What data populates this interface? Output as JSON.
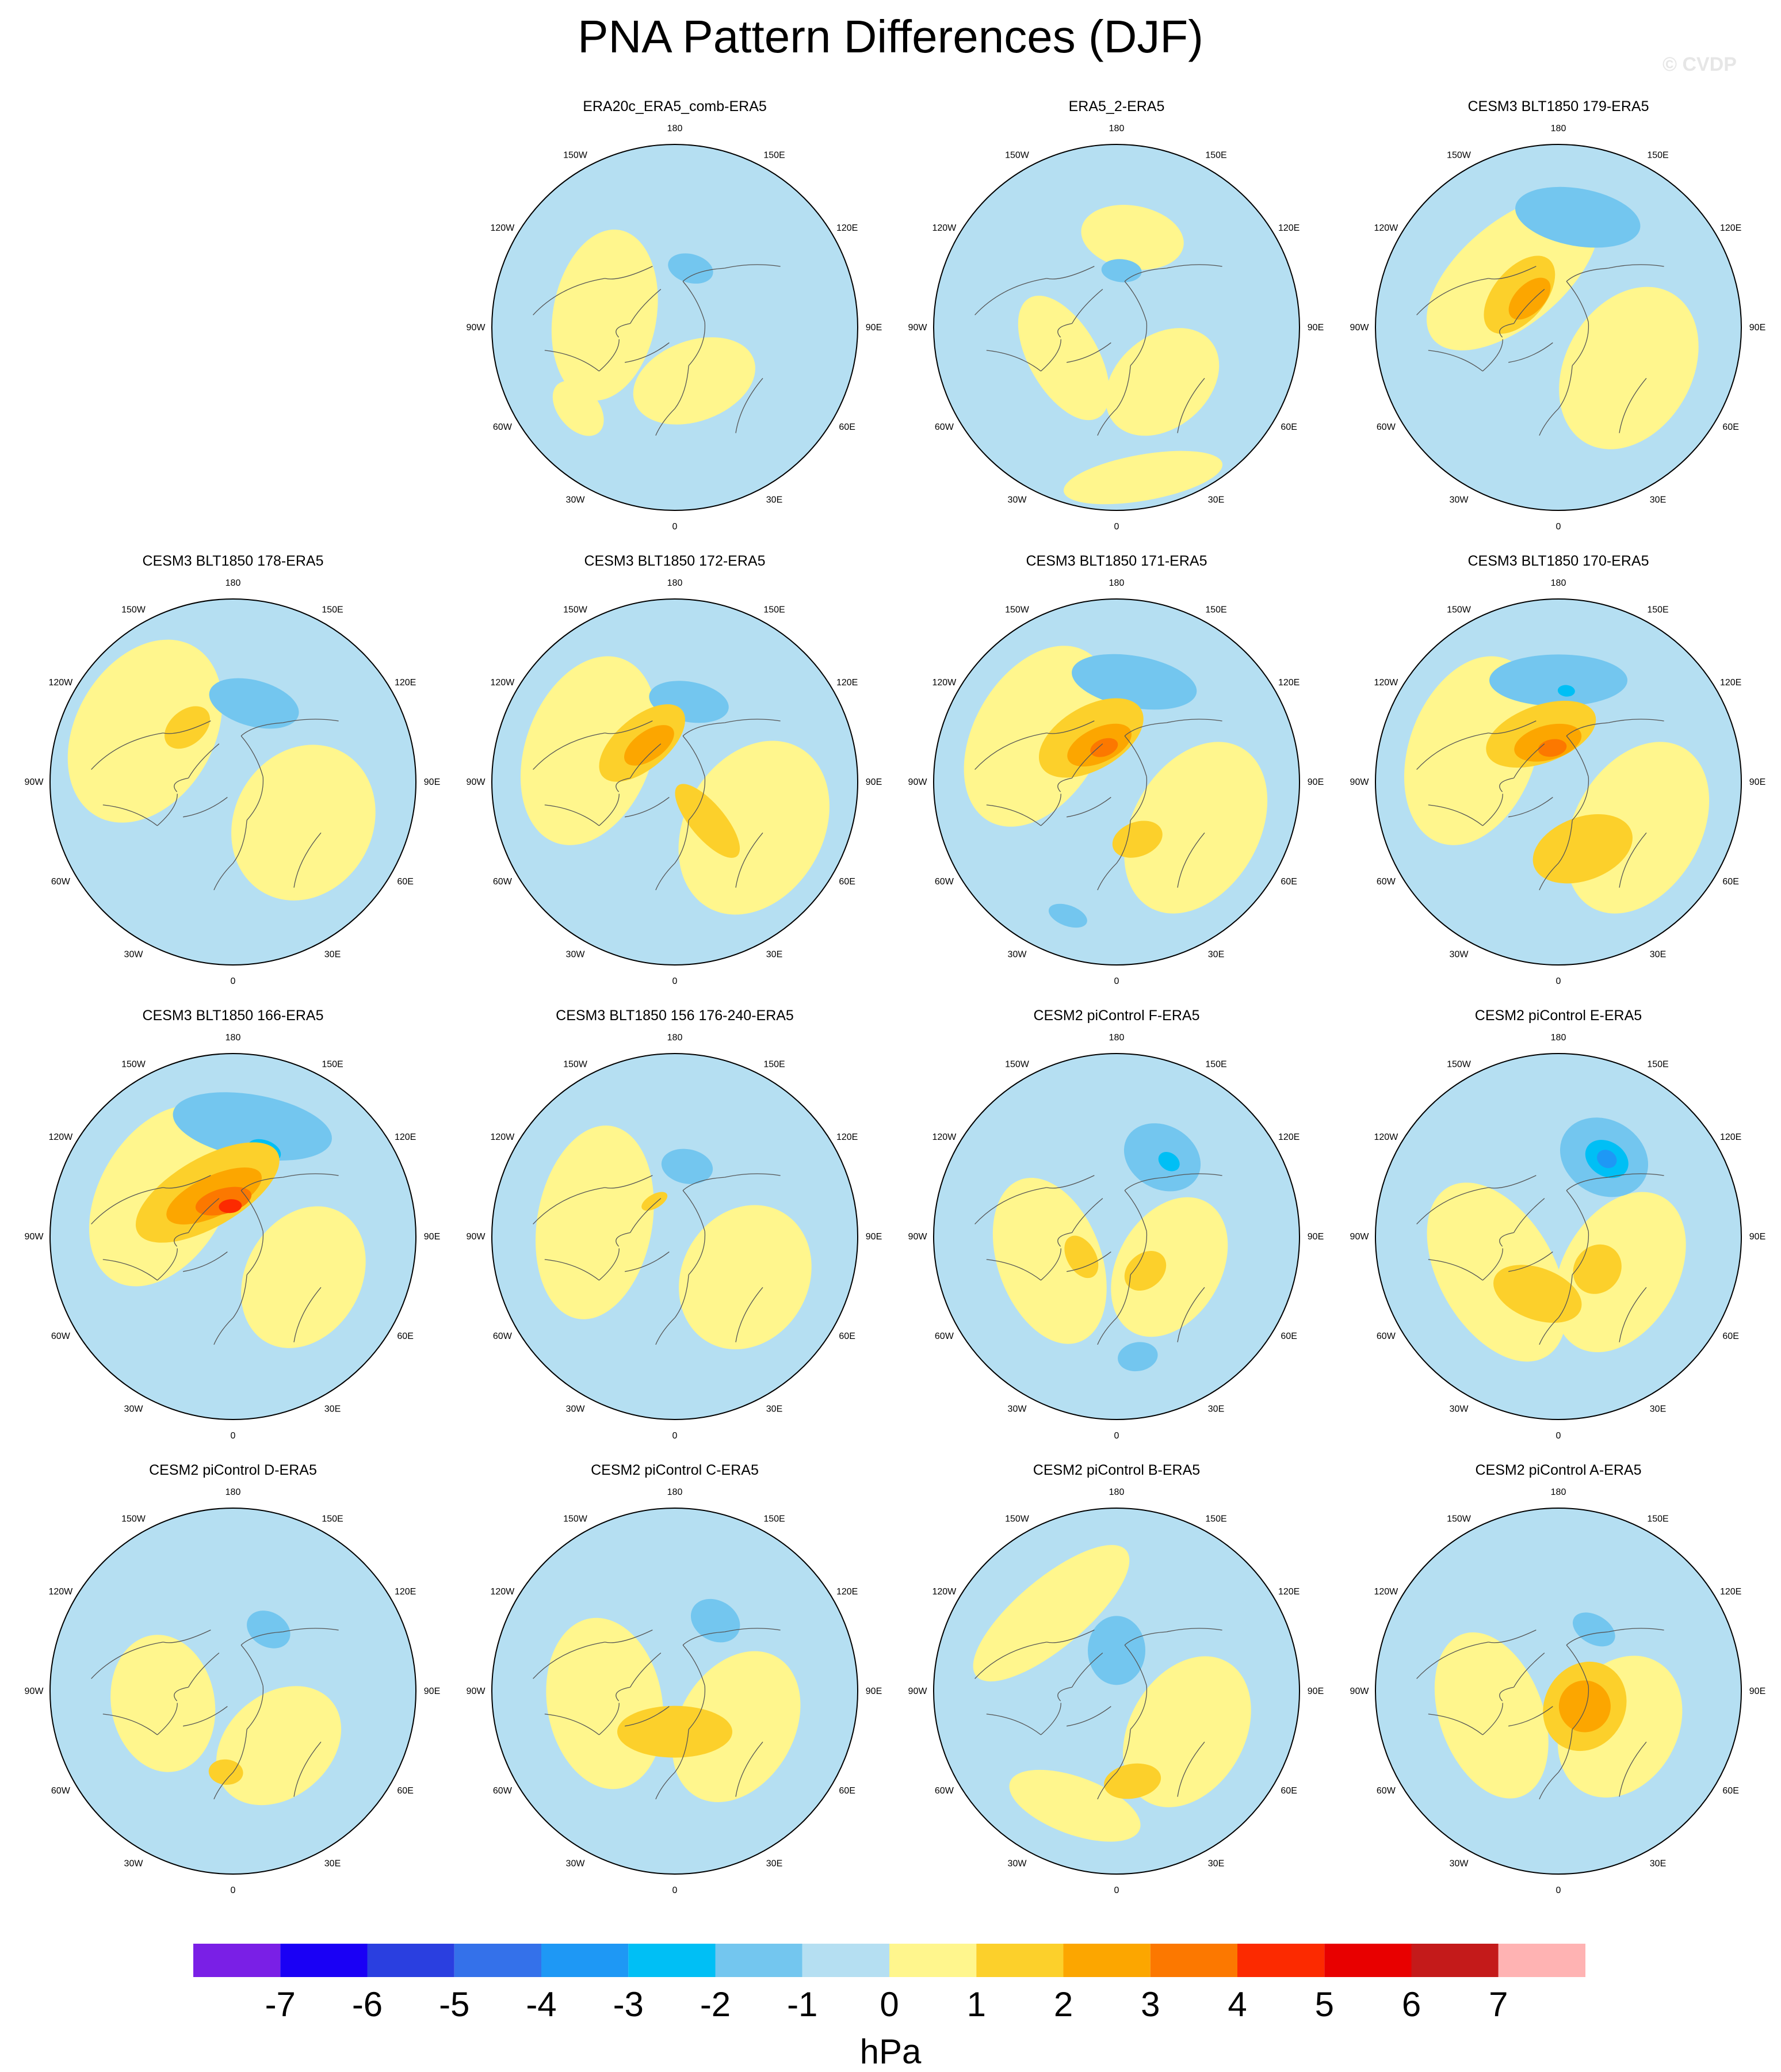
{
  "title": "PNA Pattern Differences (DJF)",
  "watermark": "© CVDP",
  "units": "hPa",
  "longitude_labels": [
    "180",
    "150E",
    "120E",
    "90E",
    "60E",
    "30E",
    "0",
    "30W",
    "60W",
    "90W",
    "120W",
    "150W"
  ],
  "colorbar": {
    "tick_labels": [
      "-7",
      "-6",
      "-5",
      "-4",
      "-3",
      "-2",
      "-1",
      "0",
      "1",
      "2",
      "3",
      "4",
      "5",
      "6",
      "7"
    ],
    "colors": [
      "#7a1fe6",
      "#1a00f5",
      "#2a3fe0",
      "#3471ea",
      "#1e98f5",
      "#00bff5",
      "#73c6ef",
      "#b5dff2",
      "#fff68d",
      "#fcd02b",
      "#fca600",
      "#fc7800",
      "#fc2a00",
      "#e80000",
      "#c41a1a",
      "#ffb3b3"
    ]
  },
  "panels": [
    {
      "title": "ERA20c_ERA5_comb-ERA5",
      "row": 0,
      "col": 1,
      "blobs": [
        {
          "lon": -100,
          "lat": 55,
          "rx": 150,
          "ry": 90,
          "level": 0
        },
        {
          "lon": 20,
          "lat": 62,
          "rx": 110,
          "ry": 70,
          "level": 0
        },
        {
          "lon": 165,
          "lat": 60,
          "rx": 40,
          "ry": 25,
          "level": -2
        },
        {
          "lon": -50,
          "lat": 28,
          "rx": 55,
          "ry": 35,
          "level": 0
        }
      ]
    },
    {
      "title": "ERA5_2-ERA5",
      "row": 0,
      "col": 2,
      "blobs": [
        {
          "lon": 170,
          "lat": 45,
          "rx": 90,
          "ry": 55,
          "level": 0
        },
        {
          "lon": -60,
          "lat": 60,
          "rx": 120,
          "ry": 60,
          "level": 0
        },
        {
          "lon": 40,
          "lat": 55,
          "rx": 110,
          "ry": 80,
          "level": 0
        },
        {
          "lon": 10,
          "lat": 15,
          "rx": 140,
          "ry": 40,
          "level": 0
        },
        {
          "lon": 175,
          "lat": 62,
          "rx": 35,
          "ry": 20,
          "level": -2
        }
      ]
    },
    {
      "title": "CESM3 BLT1850 179-ERA5",
      "row": 0,
      "col": 3,
      "blobs": [
        {
          "lon": -140,
          "lat": 55,
          "rx": 180,
          "ry": 90,
          "level": 0
        },
        {
          "lon": 60,
          "lat": 50,
          "rx": 150,
          "ry": 110,
          "level": 0
        },
        {
          "lon": 170,
          "lat": 35,
          "rx": 110,
          "ry": 50,
          "level": -2
        },
        {
          "lon": -130,
          "lat": 65,
          "rx": 80,
          "ry": 45,
          "level": 1
        },
        {
          "lon": -135,
          "lat": 70,
          "rx": 45,
          "ry": 25,
          "level": 2
        }
      ]
    },
    {
      "title": "CESM3 BLT1850 178-ERA5",
      "row": 1,
      "col": 0,
      "blobs": [
        {
          "lon": -120,
          "lat": 40,
          "rx": 170,
          "ry": 120,
          "level": 0
        },
        {
          "lon": 60,
          "lat": 50,
          "rx": 140,
          "ry": 120,
          "level": 0
        },
        {
          "lon": 165,
          "lat": 50,
          "rx": 80,
          "ry": 40,
          "level": -2
        },
        {
          "lon": -140,
          "lat": 55,
          "rx": 45,
          "ry": 30,
          "level": 1
        }
      ]
    },
    {
      "title": "CESM3 BLT1850 172-ERA5",
      "row": 1,
      "col": 1,
      "blobs": [
        {
          "lon": -110,
          "lat": 45,
          "rx": 170,
          "ry": 110,
          "level": 0
        },
        {
          "lon": 60,
          "lat": 45,
          "rx": 160,
          "ry": 120,
          "level": 0
        },
        {
          "lon": 170,
          "lat": 50,
          "rx": 70,
          "ry": 35,
          "level": -2
        },
        {
          "lon": -140,
          "lat": 65,
          "rx": 90,
          "ry": 45,
          "level": 1
        },
        {
          "lon": -145,
          "lat": 68,
          "rx": 50,
          "ry": 25,
          "level": 2
        },
        {
          "lon": 40,
          "lat": 65,
          "rx": 30,
          "ry": 80,
          "level": 1
        }
      ]
    },
    {
      "title": "CESM3 BLT1850 171-ERA5",
      "row": 1,
      "col": 2,
      "blobs": [
        {
          "lon": -120,
          "lat": 45,
          "rx": 170,
          "ry": 110,
          "level": 0
        },
        {
          "lon": 60,
          "lat": 45,
          "rx": 160,
          "ry": 110,
          "level": 0
        },
        {
          "lon": 170,
          "lat": 40,
          "rx": 110,
          "ry": 45,
          "level": -2
        },
        {
          "lon": -150,
          "lat": 65,
          "rx": 100,
          "ry": 55,
          "level": 1
        },
        {
          "lon": -155,
          "lat": 70,
          "rx": 60,
          "ry": 30,
          "level": 2
        },
        {
          "lon": -160,
          "lat": 72,
          "rx": 25,
          "ry": 15,
          "level": 3
        },
        {
          "lon": -20,
          "lat": 20,
          "rx": 35,
          "ry": 18,
          "level": -2
        },
        {
          "lon": 20,
          "lat": 60,
          "rx": 45,
          "ry": 30,
          "level": 1
        }
      ]
    },
    {
      "title": "CESM3 BLT1850 170-ERA5",
      "row": 1,
      "col": 3,
      "blobs": [
        {
          "lon": -110,
          "lat": 45,
          "rx": 170,
          "ry": 110,
          "level": 0
        },
        {
          "lon": 60,
          "lat": 45,
          "rx": 160,
          "ry": 110,
          "level": 0
        },
        {
          "lon": 180,
          "lat": 40,
          "rx": 120,
          "ry": 45,
          "level": -2
        },
        {
          "lon": -160,
          "lat": 65,
          "rx": 100,
          "ry": 50,
          "level": 1
        },
        {
          "lon": -165,
          "lat": 70,
          "rx": 60,
          "ry": 30,
          "level": 2
        },
        {
          "lon": -170,
          "lat": 73,
          "rx": 25,
          "ry": 15,
          "level": 3
        },
        {
          "lon": 20,
          "lat": 55,
          "rx": 90,
          "ry": 55,
          "level": 1
        },
        {
          "lon": 175,
          "lat": 45,
          "rx": 15,
          "ry": 10,
          "level": -3
        }
      ]
    },
    {
      "title": "CESM3 BLT1850 166-ERA5",
      "row": 2,
      "col": 0,
      "blobs": [
        {
          "lon": -120,
          "lat": 50,
          "rx": 170,
          "ry": 110,
          "level": 0
        },
        {
          "lon": 60,
          "lat": 50,
          "rx": 130,
          "ry": 100,
          "level": 0
        },
        {
          "lon": 170,
          "lat": 35,
          "rx": 140,
          "ry": 55,
          "level": -2
        },
        {
          "lon": 160,
          "lat": 45,
          "rx": 30,
          "ry": 18,
          "level": -3
        },
        {
          "lon": -150,
          "lat": 65,
          "rx": 140,
          "ry": 60,
          "level": 1
        },
        {
          "lon": -155,
          "lat": 68,
          "rx": 90,
          "ry": 35,
          "level": 2
        },
        {
          "lon": -165,
          "lat": 72,
          "rx": 50,
          "ry": 22,
          "level": 3
        },
        {
          "lon": -175,
          "lat": 75,
          "rx": 20,
          "ry": 12,
          "level": 4
        }
      ]
    },
    {
      "title": "CESM3 BLT1850 156 176-240-ERA5",
      "row": 2,
      "col": 1,
      "blobs": [
        {
          "lon": -100,
          "lat": 50,
          "rx": 170,
          "ry": 100,
          "level": 0
        },
        {
          "lon": 60,
          "lat": 50,
          "rx": 130,
          "ry": 110,
          "level": 0
        },
        {
          "lon": 170,
          "lat": 55,
          "rx": 45,
          "ry": 30,
          "level": -2
        },
        {
          "lon": -150,
          "lat": 70,
          "rx": 25,
          "ry": 12,
          "level": 1
        }
      ]
    },
    {
      "title": "CESM2 piControl F-ERA5",
      "row": 2,
      "col": 2,
      "blobs": [
        {
          "lon": -70,
          "lat": 55,
          "rx": 150,
          "ry": 90,
          "level": 0
        },
        {
          "lon": 60,
          "lat": 60,
          "rx": 130,
          "ry": 90,
          "level": 0
        },
        {
          "lon": 150,
          "lat": 45,
          "rx": 70,
          "ry": 55,
          "level": -2
        },
        {
          "lon": 145,
          "lat": 45,
          "rx": 20,
          "ry": 15,
          "level": -3
        },
        {
          "lon": 10,
          "lat": 30,
          "rx": 35,
          "ry": 25,
          "level": -2
        },
        {
          "lon": -60,
          "lat": 70,
          "rx": 40,
          "ry": 25,
          "level": 1
        },
        {
          "lon": 40,
          "lat": 68,
          "rx": 40,
          "ry": 30,
          "level": 1
        }
      ]
    },
    {
      "title": "CESM2 piControl E-ERA5",
      "row": 2,
      "col": 3,
      "blobs": [
        {
          "lon": -60,
          "lat": 55,
          "rx": 170,
          "ry": 100,
          "level": 0
        },
        {
          "lon": 60,
          "lat": 55,
          "rx": 150,
          "ry": 100,
          "level": 0
        },
        {
          "lon": 150,
          "lat": 45,
          "rx": 80,
          "ry": 65,
          "level": -2
        },
        {
          "lon": 148,
          "lat": 45,
          "rx": 40,
          "ry": 30,
          "level": -3
        },
        {
          "lon": 148,
          "lat": 45,
          "rx": 18,
          "ry": 15,
          "level": -4
        },
        {
          "lon": -20,
          "lat": 60,
          "rx": 80,
          "ry": 45,
          "level": 1
        },
        {
          "lon": 50,
          "lat": 65,
          "rx": 45,
          "ry": 40,
          "level": 1
        }
      ]
    },
    {
      "title": "CESM2 piControl D-ERA5",
      "row": 3,
      "col": 0,
      "blobs": [
        {
          "lon": -80,
          "lat": 55,
          "rx": 120,
          "ry": 90,
          "level": 0
        },
        {
          "lon": 40,
          "lat": 55,
          "rx": 120,
          "ry": 90,
          "level": 0
        },
        {
          "lon": 150,
          "lat": 55,
          "rx": 40,
          "ry": 30,
          "level": -2
        },
        {
          "lon": -5,
          "lat": 50,
          "rx": 30,
          "ry": 22,
          "level": 1
        }
      ]
    },
    {
      "title": "CESM2 piControl C-ERA5",
      "row": 3,
      "col": 1,
      "blobs": [
        {
          "lon": -80,
          "lat": 55,
          "rx": 150,
          "ry": 100,
          "level": 0
        },
        {
          "lon": 60,
          "lat": 55,
          "rx": 140,
          "ry": 100,
          "level": 0
        },
        {
          "lon": 150,
          "lat": 50,
          "rx": 45,
          "ry": 35,
          "level": -2
        },
        {
          "lon": 0,
          "lat": 70,
          "rx": 100,
          "ry": 45,
          "level": 1
        }
      ]
    },
    {
      "title": "CESM2 piControl B-ERA5",
      "row": 3,
      "col": 2,
      "blobs": [
        {
          "lon": -140,
          "lat": 40,
          "rx": 170,
          "ry": 60,
          "level": 0
        },
        {
          "lon": 60,
          "lat": 50,
          "rx": 140,
          "ry": 100,
          "level": 0
        },
        {
          "lon": -20,
          "lat": 30,
          "rx": 120,
          "ry": 50,
          "level": 0
        },
        {
          "lon": 180,
          "lat": 70,
          "rx": 50,
          "ry": 60,
          "level": -2
        },
        {
          "lon": 10,
          "lat": 45,
          "rx": 50,
          "ry": 30,
          "level": 1
        }
      ]
    },
    {
      "title": "CESM2 piControl A-ERA5",
      "row": 3,
      "col": 3,
      "blobs": [
        {
          "lon": -70,
          "lat": 55,
          "rx": 150,
          "ry": 90,
          "level": 0
        },
        {
          "lon": 60,
          "lat": 55,
          "rx": 130,
          "ry": 100,
          "level": 0
        },
        {
          "lon": 150,
          "lat": 55,
          "rx": 40,
          "ry": 25,
          "level": -2
        },
        {
          "lon": 60,
          "lat": 75,
          "rx": 80,
          "ry": 70,
          "level": 1
        },
        {
          "lon": 60,
          "lat": 75,
          "rx": 45,
          "ry": 45,
          "level": 2
        }
      ]
    }
  ]
}
